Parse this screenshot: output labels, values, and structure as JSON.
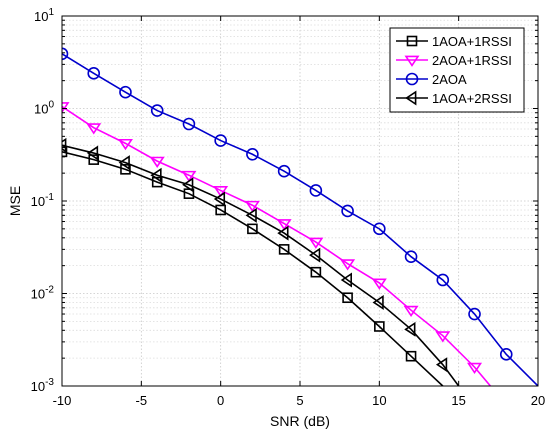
{
  "chart_data": {
    "type": "line",
    "title": "",
    "xlabel": "SNR (dB)",
    "ylabel": "MSE",
    "xlim": [
      -10,
      20
    ],
    "ylim": [
      0.001,
      10
    ],
    "yscale": "log",
    "grid": true,
    "legend_position": "top-right",
    "x_ticks": [
      -10,
      -5,
      0,
      5,
      10,
      15,
      20
    ],
    "y_ticks": [
      {
        "base": "10",
        "exp": "-3",
        "value": 0.001
      },
      {
        "base": "10",
        "exp": "-2",
        "value": 0.01
      },
      {
        "base": "10",
        "exp": "-1",
        "value": 0.1
      },
      {
        "base": "10",
        "exp": "0",
        "value": 1
      },
      {
        "base": "10",
        "exp": "1",
        "value": 10
      }
    ],
    "series": [
      {
        "name": "1AOA+1RSSI",
        "color": "#000000",
        "marker": "square",
        "x": [
          -10,
          -8,
          -6,
          -4,
          -2,
          0,
          2,
          4,
          6,
          8,
          10,
          12,
          14
        ],
        "y": [
          0.34,
          0.28,
          0.22,
          0.16,
          0.12,
          0.08,
          0.05,
          0.03,
          0.017,
          0.009,
          0.0044,
          0.0021,
          0.001
        ]
      },
      {
        "name": "2AOA+1RSSI",
        "color": "#ff00ff",
        "marker": "triangle-down",
        "x": [
          -10,
          -8,
          -6,
          -4,
          -2,
          0,
          2,
          4,
          6,
          8,
          10,
          12,
          14,
          16,
          17
        ],
        "y": [
          1.05,
          0.62,
          0.42,
          0.27,
          0.19,
          0.13,
          0.09,
          0.057,
          0.036,
          0.021,
          0.013,
          0.0066,
          0.0035,
          0.0016,
          0.001
        ]
      },
      {
        "name": "2AOA",
        "color": "#0000cc",
        "marker": "circle",
        "x": [
          -10,
          -8,
          -6,
          -4,
          -2,
          0,
          2,
          4,
          6,
          8,
          10,
          12,
          14,
          16,
          18,
          20
        ],
        "y": [
          3.9,
          2.4,
          1.5,
          0.95,
          0.68,
          0.45,
          0.32,
          0.21,
          0.13,
          0.078,
          0.05,
          0.025,
          0.014,
          0.006,
          0.0022,
          0.001
        ]
      },
      {
        "name": "1AOA+2RSSI",
        "color": "#000000",
        "marker": "triangle-left",
        "x": [
          -10,
          -8,
          -6,
          -4,
          -2,
          0,
          2,
          4,
          6,
          8,
          10,
          12,
          14,
          15
        ],
        "y": [
          0.4,
          0.33,
          0.26,
          0.19,
          0.15,
          0.105,
          0.07,
          0.045,
          0.026,
          0.014,
          0.008,
          0.0041,
          0.0017,
          0.001
        ]
      }
    ]
  }
}
